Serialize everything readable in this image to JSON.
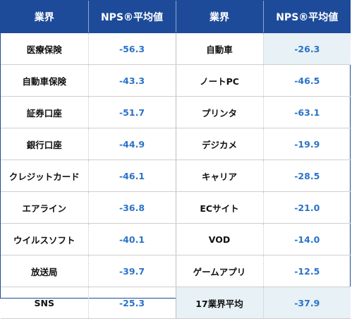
{
  "table": {
    "headers": [
      "業界",
      "NPS®平均値",
      "業界",
      "NPS®平均値"
    ],
    "rows": [
      {
        "left_industry": "医療保険",
        "left_value": "-56.3",
        "right_industry": "自動車",
        "right_value": "-26.3",
        "highlight": "right_value"
      },
      {
        "left_industry": "自動車保険",
        "left_value": "-43.3",
        "right_industry": "ノートPC",
        "right_value": "-46.5"
      },
      {
        "left_industry": "証券口座",
        "left_value": "-51.7",
        "right_industry": "プリンタ",
        "right_value": "-63.1"
      },
      {
        "left_industry": "銀行口座",
        "left_value": "-44.9",
        "right_industry": "デジカメ",
        "right_value": "-19.9"
      },
      {
        "left_industry": "クレジットカード",
        "left_value": "-46.1",
        "right_industry": "キャリア",
        "right_value": "-28.5"
      },
      {
        "left_industry": "エアライン",
        "left_value": "-36.8",
        "right_industry": "ECサイト",
        "right_value": "-21.0"
      },
      {
        "left_industry": "ウイルスソフト",
        "left_value": "-40.1",
        "right_industry": "VOD",
        "right_value": "-14.0"
      },
      {
        "left_industry": "放送局",
        "left_value": "-39.7",
        "right_industry": "ゲームアプリ",
        "right_value": "-12.5"
      },
      {
        "left_industry": "SNS",
        "left_value": "-25.3",
        "right_industry": "17業界平均",
        "right_value": "-37.9",
        "highlight": "right_both"
      }
    ]
  },
  "colors": {
    "header_bg": "#1d4b9a",
    "header_text": "#ffffff",
    "value_text": "#2a73c6",
    "industry_text": "#111111",
    "highlight_bg": "#e7f1f6"
  }
}
